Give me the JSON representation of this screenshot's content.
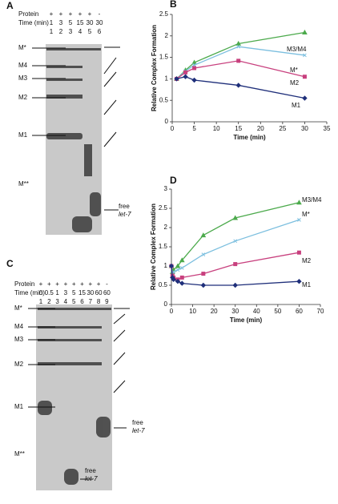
{
  "chart_data": [
    {
      "type": "line",
      "panel": "B",
      "y_label": "Relative Complex Formation",
      "x_label": "Time (min)",
      "xlim": [
        0,
        35
      ],
      "xticks": [
        0,
        5,
        10,
        15,
        20,
        25,
        30,
        35
      ],
      "ylim": [
        0,
        2.5
      ],
      "yticks": [
        0,
        0.5,
        1,
        1.5,
        2,
        2.5
      ],
      "x": [
        1,
        3,
        5,
        15,
        30
      ],
      "series": [
        {
          "name": "M3/M4",
          "color": "#4caa4c",
          "marker": "triangle",
          "values": [
            1,
            1.2,
            1.38,
            1.82,
            2.08
          ]
        },
        {
          "name": "M*",
          "color": "#7cbfdf",
          "marker": "star",
          "values": [
            1,
            1.18,
            1.32,
            1.75,
            1.55
          ]
        },
        {
          "name": "M2",
          "color": "#c8407e",
          "marker": "square",
          "values": [
            1,
            1.15,
            1.25,
            1.42,
            1.05
          ]
        },
        {
          "name": "M1",
          "color": "#1f2f7a",
          "marker": "diamond",
          "values": [
            1,
            1.05,
            0.97,
            0.85,
            0.55
          ]
        }
      ]
    },
    {
      "type": "line",
      "panel": "D",
      "y_label": "Relative Complex Formation",
      "x_label": "Time (min)",
      "xlim": [
        0,
        70
      ],
      "xticks": [
        0,
        10,
        20,
        30,
        40,
        50,
        60,
        70
      ],
      "ylim": [
        0,
        3
      ],
      "yticks": [
        0,
        0.5,
        1,
        1.5,
        2,
        2.5,
        3
      ],
      "x": [
        0,
        0.5,
        1,
        3,
        5,
        15,
        30,
        60
      ],
      "series": [
        {
          "name": "M3/M4",
          "color": "#4caa4c",
          "marker": "triangle",
          "values": [
            1,
            0.85,
            0.9,
            1.0,
            1.15,
            1.8,
            2.25,
            2.65
          ]
        },
        {
          "name": "M*",
          "color": "#7cbfdf",
          "marker": "star",
          "values": [
            1,
            0.8,
            0.85,
            0.9,
            0.95,
            1.3,
            1.65,
            2.2
          ]
        },
        {
          "name": "M2",
          "color": "#c8407e",
          "marker": "square",
          "values": [
            1,
            0.75,
            0.7,
            0.65,
            0.7,
            0.8,
            1.05,
            1.35
          ]
        },
        {
          "name": "M1",
          "color": "#1f2f7a",
          "marker": "diamond",
          "values": [
            1,
            0.7,
            0.65,
            0.6,
            0.55,
            0.5,
            0.5,
            0.6
          ]
        }
      ]
    }
  ],
  "gels": [
    {
      "panel": "A",
      "protein_label": "Protein",
      "time_label": "Time (min)",
      "protein": [
        "+",
        "+",
        "+",
        "+",
        "+",
        "-"
      ],
      "times": [
        1,
        3,
        5,
        15,
        30,
        30
      ],
      "lanes": [
        1,
        2,
        3,
        4,
        5,
        6
      ],
      "bands": [
        "M*",
        "M4",
        "M3",
        "M2",
        "M1",
        "M**"
      ],
      "free_labels": [
        [
          "free",
          "let-7"
        ]
      ]
    },
    {
      "panel": "C",
      "protein_label": "Protein",
      "time_label": "Time (min)",
      "protein": [
        "+",
        "+",
        "+",
        "+",
        "+",
        "+",
        "+",
        "+",
        "-"
      ],
      "times": [
        0,
        0.5,
        1,
        3,
        5,
        15,
        30,
        60,
        60
      ],
      "lanes": [
        1,
        2,
        3,
        4,
        5,
        6,
        7,
        8,
        9
      ],
      "bands": [
        "M*",
        "M4",
        "M3",
        "M2",
        "M1",
        "M**"
      ],
      "free_labels": [
        [
          "free",
          "let-7"
        ],
        [
          "free",
          "let-7"
        ]
      ]
    }
  ]
}
